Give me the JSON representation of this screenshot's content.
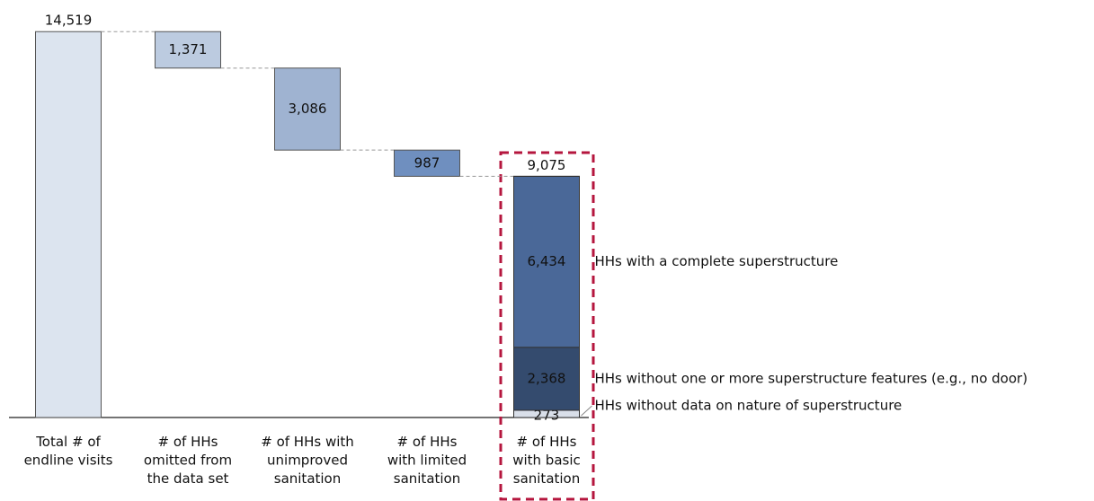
{
  "chart_data": {
    "type": "waterfall",
    "categories": [
      [
        "Total # of",
        "endline visits"
      ],
      [
        "# of HHs",
        "omitted from",
        "the data set"
      ],
      [
        "# of HHs with",
        "unimproved",
        "sanitation"
      ],
      [
        "# of HHs",
        "with limited",
        "sanitation"
      ],
      [
        "# of HHs",
        "with basic",
        "sanitation"
      ]
    ],
    "values": [
      14519,
      1371,
      3086,
      987,
      9075
    ],
    "value_labels": [
      "14,519",
      "1,371",
      "3,086",
      "987",
      "9,075"
    ],
    "colors": [
      "#dce4ef",
      "#bccbe0",
      "#9fb3d1",
      "#6f8fbf"
    ],
    "series": [
      {
        "name": "HHs without data on nature of superstructure",
        "color": "#d9dfe9",
        "value": 273,
        "value_label": "273"
      },
      {
        "name": "HHs without one or more superstructure features (e.g., no door)",
        "color": "#344b6e",
        "value": 2368,
        "value_label": "2,368"
      },
      {
        "name": "HHs with a complete superstructure",
        "color": "#4a6898",
        "value": 6434,
        "value_label": "6,434"
      }
    ],
    "ylim": [
      0,
      15000
    ]
  }
}
